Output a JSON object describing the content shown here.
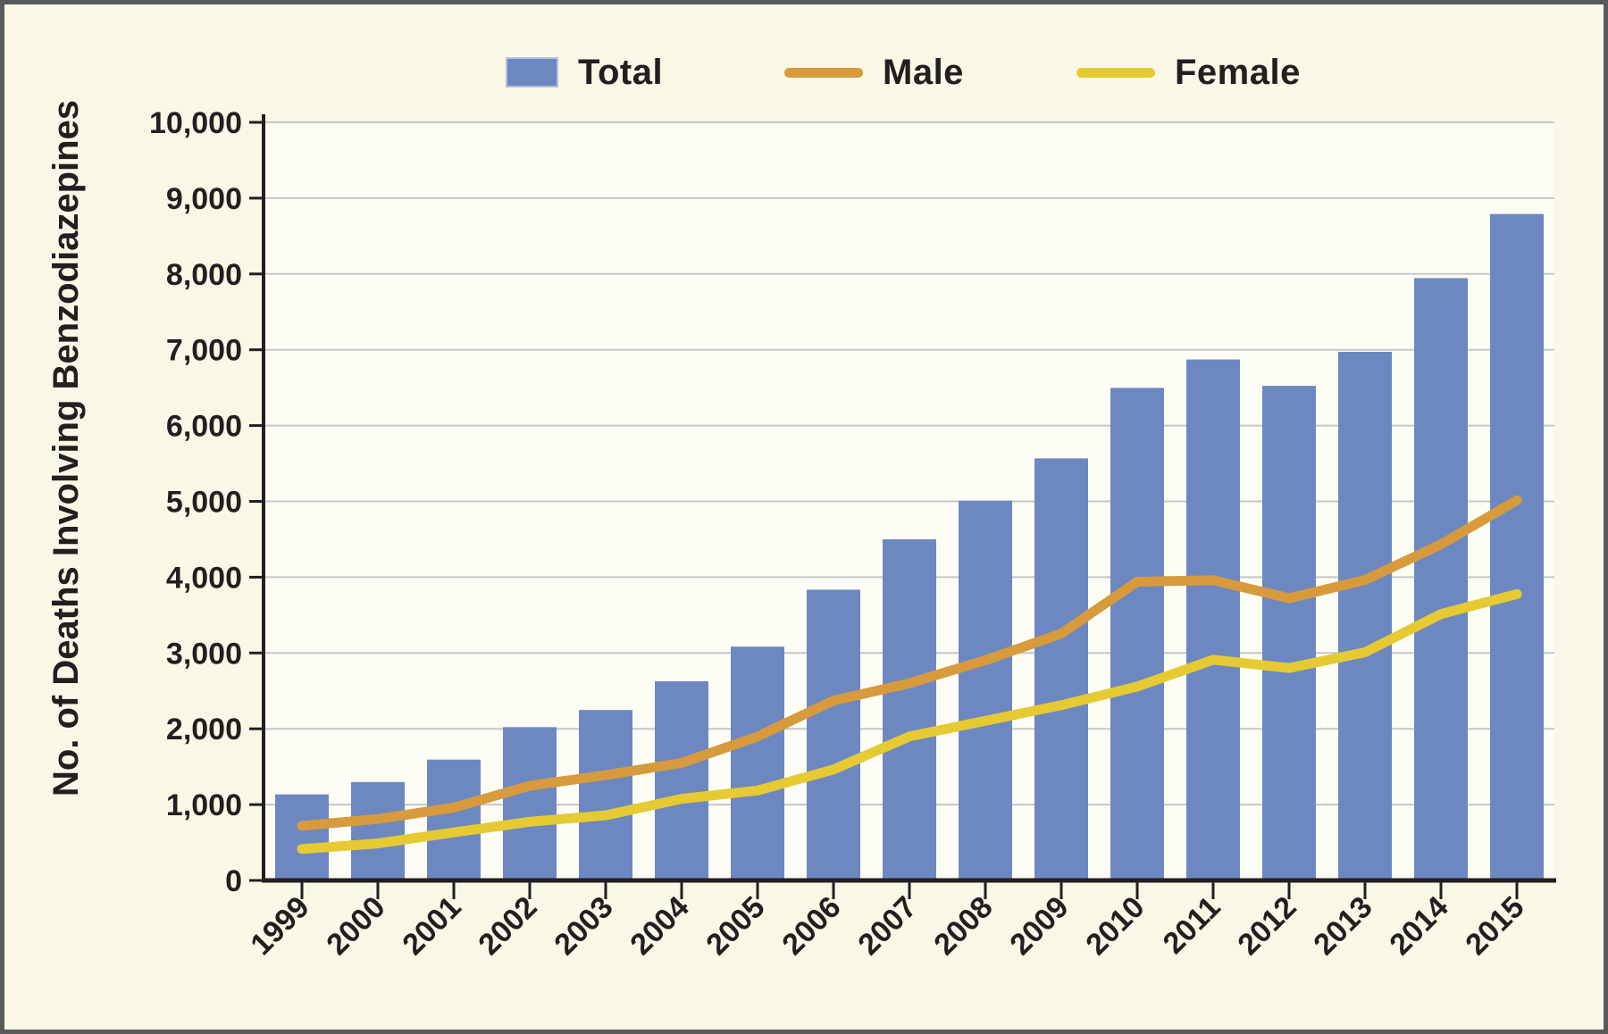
{
  "chart_data": {
    "type": "bar",
    "subtype": "bar-and-line-combo",
    "title": "",
    "xlabel": "",
    "ylabel": "No. of Deaths Involving Benzodiazepines",
    "categories": [
      "1999",
      "2000",
      "2001",
      "2002",
      "2003",
      "2004",
      "2005",
      "2006",
      "2007",
      "2008",
      "2009",
      "2010",
      "2011",
      "2012",
      "2013",
      "2014",
      "2015"
    ],
    "series": [
      {
        "name": "Total",
        "render": "bar",
        "color": "#6d88c0",
        "values": [
          1135,
          1298,
          1594,
          2022,
          2248,
          2627,
          3084,
          3835,
          4500,
          5010,
          5567,
          6497,
          6872,
          6524,
          6973,
          7945,
          8791
        ]
      },
      {
        "name": "Male",
        "render": "line",
        "color": "#d79a3d",
        "values": [
          720,
          810,
          960,
          1248,
          1389,
          1550,
          1898,
          2372,
          2601,
          2905,
          3256,
          3940,
          3961,
          3722,
          3963,
          4432,
          5014
        ]
      },
      {
        "name": "Female",
        "render": "line",
        "color": "#e6ca33",
        "values": [
          415,
          488,
          634,
          774,
          859,
          1077,
          1186,
          1463,
          1899,
          2105,
          2311,
          2557,
          2911,
          2802,
          3010,
          3513,
          3777
        ]
      }
    ],
    "ylim": [
      0,
      10000
    ],
    "ytick_step": 1000,
    "ytick_labels": [
      "0",
      "1,000",
      "2,000",
      "3,000",
      "4,000",
      "5,000",
      "6,000",
      "7,000",
      "8,000",
      "9,000",
      "10,000"
    ],
    "grid": "horizontal",
    "legend_position": "top",
    "colors": {
      "background": "#faf7e7",
      "plot_background": "#fdfdf5",
      "gridline": "#c6c6c8",
      "axis_text": "#231f20",
      "frame_border": "#58595b"
    }
  }
}
